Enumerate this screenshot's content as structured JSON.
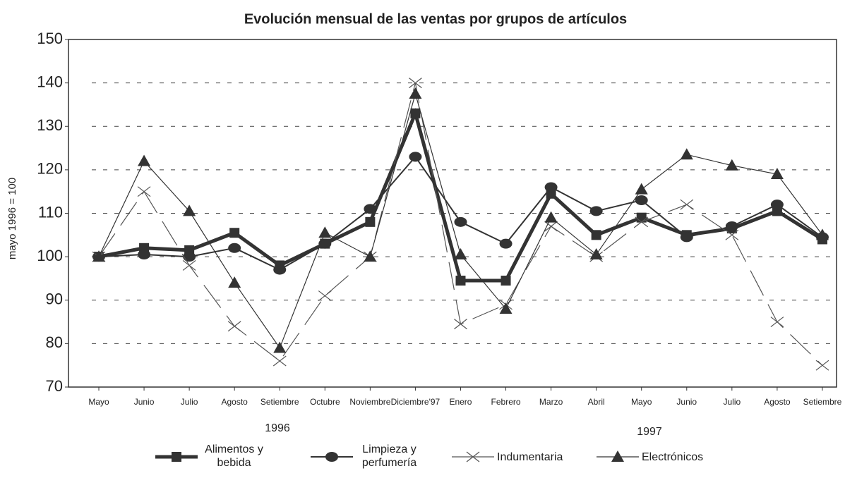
{
  "chart_data": {
    "type": "line",
    "title": "Evolución mensual de las ventas por grupos de artículos",
    "ylabel": "mayo 1996 = 100",
    "categories": [
      "Mayo",
      "Junio",
      "Julio",
      "Agosto",
      "Setiembre",
      "Octubre",
      "Noviembre",
      "Diciembre'97",
      "Enero",
      "Febrero",
      "Marzo",
      "Abril",
      "Mayo",
      "Junio",
      "Julio",
      "Agosto",
      "Setiembre"
    ],
    "year_labels": [
      "1996",
      "1997"
    ],
    "series": [
      {
        "name": "Alimentos y bebida",
        "color": "#333333",
        "marker": "square",
        "values": [
          100,
          102,
          101.5,
          105.5,
          98,
          103,
          108,
          133,
          94.5,
          94.5,
          114.5,
          105,
          109,
          105,
          106.5,
          110.5,
          104
        ]
      },
      {
        "name": "Limpieza y perfumería",
        "color": "#333333",
        "marker": "circle",
        "values": [
          100,
          100.5,
          100,
          102,
          97,
          103,
          111,
          123,
          108,
          103,
          116,
          110.5,
          113,
          104.5,
          107,
          112,
          104.5
        ]
      },
      {
        "name": "Indumentaria",
        "color": "#555555",
        "marker": "x",
        "values": [
          100,
          115,
          98,
          84,
          76,
          91,
          100,
          140,
          84.5,
          89,
          107,
          100,
          108,
          112,
          105,
          85,
          75
        ]
      },
      {
        "name": "Electrónicos",
        "color": "#333333",
        "marker": "triangle",
        "values": [
          100,
          122,
          110.5,
          94,
          79,
          105.5,
          100,
          137.5,
          100.5,
          88,
          109,
          100.5,
          115.5,
          123.5,
          121,
          119,
          105
        ]
      }
    ],
    "ylim": [
      70,
      150
    ],
    "yticks": [
      70,
      80,
      90,
      100,
      110,
      120,
      130,
      140,
      150
    ],
    "grid": true
  }
}
